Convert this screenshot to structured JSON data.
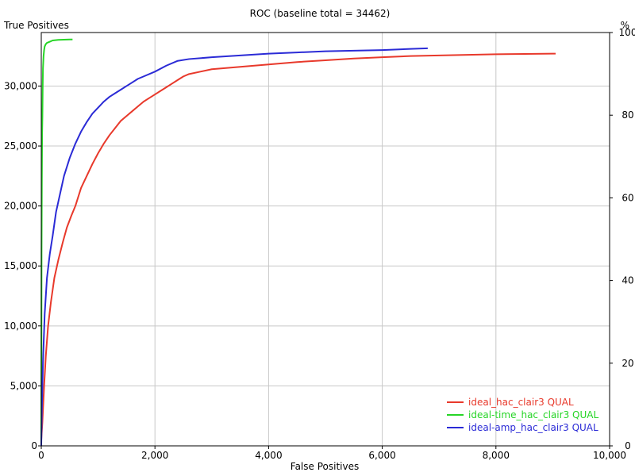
{
  "chart_data": {
    "type": "line",
    "title": "ROC (baseline total = 34462)",
    "xlabel": "False Positives",
    "ylabel": "True Positives",
    "y2label": "%",
    "xlim": [
      0,
      10000
    ],
    "ylim": [
      0,
      34462
    ],
    "y2lim": [
      0,
      100
    ],
    "xticks": [
      0,
      2000,
      4000,
      6000,
      8000,
      10000
    ],
    "xtick_labels": [
      "0",
      "2,000",
      "4,000",
      "6,000",
      "8,000",
      "10,000"
    ],
    "yticks": [
      0,
      5000,
      10000,
      15000,
      20000,
      25000,
      30000
    ],
    "ytick_labels": [
      "0",
      "5,000",
      "10,000",
      "15,000",
      "20,000",
      "25,000",
      "30,000"
    ],
    "y2ticks": [
      0,
      20,
      40,
      60,
      80,
      100
    ],
    "y2tick_labels": [
      "0",
      "20",
      "40",
      "60",
      "80",
      "100"
    ],
    "grid": true,
    "legend_position": "bottom-right",
    "series": [
      {
        "name": "ideal_hac_clair3 QUAL",
        "color": "#e8392b",
        "x": [
          0,
          20,
          50,
          80,
          120,
          170,
          230,
          300,
          380,
          450,
          530,
          600,
          700,
          800,
          900,
          1000,
          1100,
          1200,
          1300,
          1400,
          1500,
          1600,
          1700,
          1800,
          1900,
          2000,
          2100,
          2200,
          2300,
          2400,
          2500,
          2600,
          2800,
          3000,
          3500,
          4000,
          4500,
          5000,
          5500,
          6000,
          6500,
          7000,
          7500,
          8000,
          8500,
          9000,
          9050
        ],
        "y": [
          500,
          2000,
          5000,
          7500,
          10000,
          12000,
          14000,
          15500,
          17000,
          18200,
          19200,
          20000,
          21500,
          22500,
          23500,
          24400,
          25200,
          25900,
          26500,
          27100,
          27500,
          27900,
          28300,
          28700,
          29000,
          29300,
          29600,
          29900,
          30200,
          30500,
          30800,
          31000,
          31200,
          31400,
          31600,
          31800,
          32000,
          32150,
          32300,
          32400,
          32500,
          32550,
          32600,
          32650,
          32680,
          32700,
          32700
        ]
      },
      {
        "name": "ideal-time_hac_clair3 QUAL",
        "color": "#27d527",
        "x": [
          0,
          5,
          10,
          15,
          20,
          25,
          30,
          40,
          50,
          60,
          80,
          100,
          150,
          200,
          300,
          400,
          500,
          550
        ],
        "y": [
          0,
          16000,
          22000,
          26000,
          27500,
          30000,
          31500,
          32500,
          33000,
          33300,
          33500,
          33600,
          33700,
          33800,
          33850,
          33870,
          33880,
          33880
        ]
      },
      {
        "name": "ideal-amp_hac_clair3 QUAL",
        "color": "#2b2bd6",
        "x": [
          0,
          10,
          30,
          60,
          100,
          150,
          200,
          260,
          330,
          400,
          500,
          600,
          700,
          800,
          900,
          1000,
          1100,
          1200,
          1300,
          1400,
          1500,
          1600,
          1700,
          1800,
          2000,
          2200,
          2400,
          2600,
          3000,
          3500,
          4000,
          4500,
          5000,
          5500,
          6000,
          6500,
          6800
        ],
        "y": [
          0,
          3000,
          7000,
          11000,
          14000,
          16000,
          17500,
          19500,
          21000,
          22500,
          24000,
          25200,
          26200,
          27000,
          27700,
          28200,
          28700,
          29100,
          29400,
          29700,
          30000,
          30300,
          30600,
          30800,
          31200,
          31700,
          32100,
          32250,
          32400,
          32550,
          32700,
          32800,
          32900,
          32950,
          33000,
          33100,
          33150
        ]
      }
    ]
  }
}
